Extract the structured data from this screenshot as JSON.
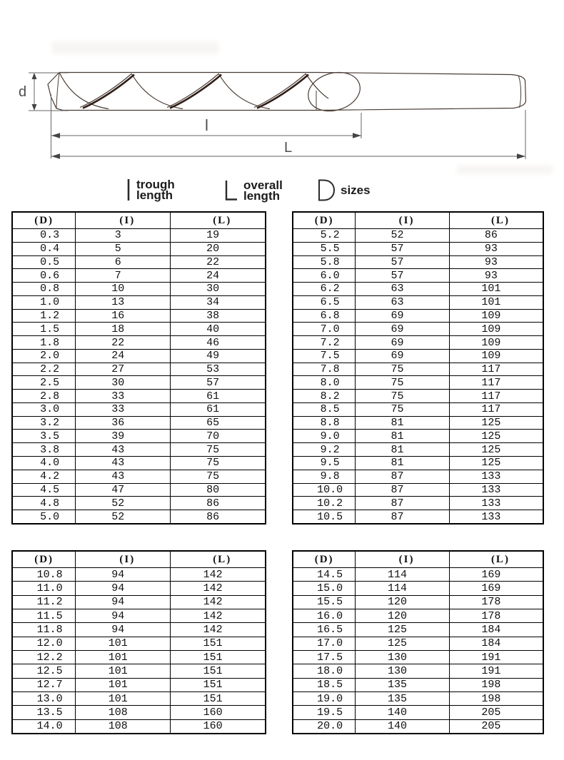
{
  "diagram": {
    "dimension_labels": {
      "d": "d",
      "l": "l",
      "L": "L"
    }
  },
  "legend": {
    "items": [
      {
        "icon": "trough-length-glyph",
        "line1": "trough",
        "line2": "length"
      },
      {
        "icon": "overall-length-glyph",
        "line1": "overall",
        "line2": "length"
      },
      {
        "icon": "diameter-glyph",
        "line1": "sizes",
        "line2": ""
      }
    ]
  },
  "tables": {
    "headers": [
      "(D)",
      "(I)",
      "(L)"
    ],
    "top_left": [
      [
        "0.3",
        "3",
        "19"
      ],
      [
        "0.4",
        "5",
        "20"
      ],
      [
        "0.5",
        "6",
        "22"
      ],
      [
        "0.6",
        "7",
        "24"
      ],
      [
        "0.8",
        "10",
        "30"
      ],
      [
        "1.0",
        "13",
        "34"
      ],
      [
        "1.2",
        "16",
        "38"
      ],
      [
        "1.5",
        "18",
        "40"
      ],
      [
        "1.8",
        "22",
        "46"
      ],
      [
        "2.0",
        "24",
        "49"
      ],
      [
        "2.2",
        "27",
        "53"
      ],
      [
        "2.5",
        "30",
        "57"
      ],
      [
        "2.8",
        "33",
        "61"
      ],
      [
        "3.0",
        "33",
        "61"
      ],
      [
        "3.2",
        "36",
        "65"
      ],
      [
        "3.5",
        "39",
        "70"
      ],
      [
        "3.8",
        "43",
        "75"
      ],
      [
        "4.0",
        "43",
        "75"
      ],
      [
        "4.2",
        "43",
        "75"
      ],
      [
        "4.5",
        "47",
        "80"
      ],
      [
        "4.8",
        "52",
        "86"
      ],
      [
        "5.0",
        "52",
        "86"
      ]
    ],
    "top_right": [
      [
        "5.2",
        "52",
        "86"
      ],
      [
        "5.5",
        "57",
        "93"
      ],
      [
        "5.8",
        "57",
        "93"
      ],
      [
        "6.0",
        "57",
        "93"
      ],
      [
        "6.2",
        "63",
        "101"
      ],
      [
        "6.5",
        "63",
        "101"
      ],
      [
        "6.8",
        "69",
        "109"
      ],
      [
        "7.0",
        "69",
        "109"
      ],
      [
        "7.2",
        "69",
        "109"
      ],
      [
        "7.5",
        "69",
        "109"
      ],
      [
        "7.8",
        "75",
        "117"
      ],
      [
        "8.0",
        "75",
        "117"
      ],
      [
        "8.2",
        "75",
        "117"
      ],
      [
        "8.5",
        "75",
        "117"
      ],
      [
        "8.8",
        "81",
        "125"
      ],
      [
        "9.0",
        "81",
        "125"
      ],
      [
        "9.2",
        "81",
        "125"
      ],
      [
        "9.5",
        "81",
        "125"
      ],
      [
        "9.8",
        "87",
        "133"
      ],
      [
        "10.0",
        "87",
        "133"
      ],
      [
        "10.2",
        "87",
        "133"
      ],
      [
        "10.5",
        "87",
        "133"
      ]
    ],
    "bottom_left": [
      [
        "10.8",
        "94",
        "142"
      ],
      [
        "11.0",
        "94",
        "142"
      ],
      [
        "11.2",
        "94",
        "142"
      ],
      [
        "11.5",
        "94",
        "142"
      ],
      [
        "11.8",
        "94",
        "142"
      ],
      [
        "12.0",
        "101",
        "151"
      ],
      [
        "12.2",
        "101",
        "151"
      ],
      [
        "12.5",
        "101",
        "151"
      ],
      [
        "12.7",
        "101",
        "151"
      ],
      [
        "13.0",
        "101",
        "151"
      ],
      [
        "13.5",
        "108",
        "160"
      ],
      [
        "14.0",
        "108",
        "160"
      ]
    ],
    "bottom_right": [
      [
        "14.5",
        "114",
        "169"
      ],
      [
        "15.0",
        "114",
        "169"
      ],
      [
        "15.5",
        "120",
        "178"
      ],
      [
        "16.0",
        "120",
        "178"
      ],
      [
        "16.5",
        "125",
        "184"
      ],
      [
        "17.0",
        "125",
        "184"
      ],
      [
        "17.5",
        "130",
        "191"
      ],
      [
        "18.0",
        "130",
        "191"
      ],
      [
        "18.5",
        "135",
        "198"
      ],
      [
        "19.0",
        "135",
        "198"
      ],
      [
        "19.5",
        "140",
        "205"
      ],
      [
        "20.0",
        "140",
        "205"
      ]
    ]
  },
  "colors": {
    "table_border": "#000000",
    "drawing_stroke": "#4a3c34",
    "flute_band": "#301e18",
    "dimension_line": "#666666",
    "label_text": "#4d4d4d",
    "text": "#101010"
  }
}
